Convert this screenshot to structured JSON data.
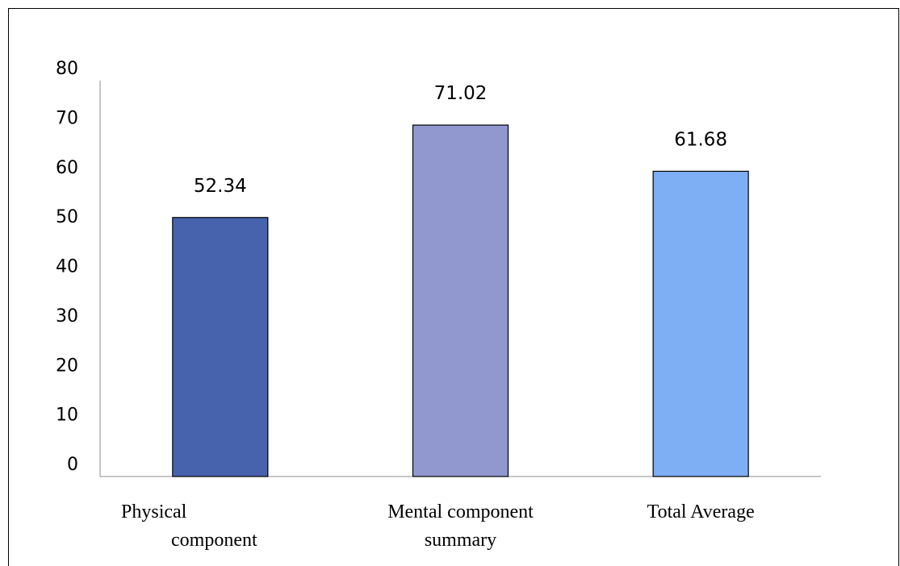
{
  "chart_data": {
    "type": "bar",
    "categories": [
      [
        "Physical",
        "component"
      ],
      [
        "Mental component",
        "summary"
      ],
      [
        "Total Average"
      ]
    ],
    "values": [
      52.34,
      71.02,
      61.68
    ],
    "data_labels": [
      "52.34",
      "71.02",
      "61.68"
    ],
    "colors": [
      "#4763ad",
      "#9197cf",
      "#7eaef3"
    ],
    "ylim": [
      0,
      80
    ],
    "yticks": [
      "0",
      "10",
      "20",
      "30",
      "40",
      "50",
      "60",
      "70",
      "80"
    ],
    "grid": false,
    "legend": "none"
  }
}
